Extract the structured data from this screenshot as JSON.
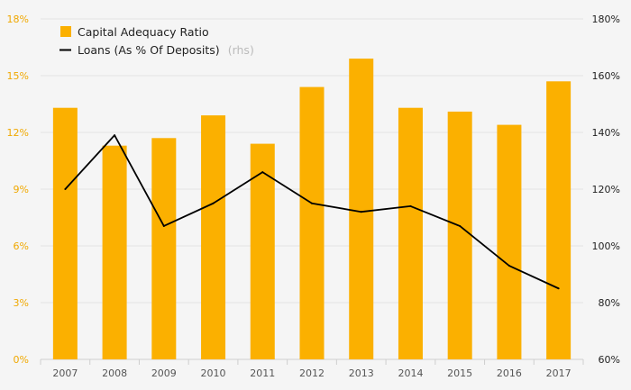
{
  "chart_data": {
    "type": "bar",
    "categories": [
      "2007",
      "2008",
      "2009",
      "2010",
      "2011",
      "2012",
      "2013",
      "2014",
      "2015",
      "2016",
      "2017"
    ],
    "series": [
      {
        "name": "Capital Adequacy Ratio",
        "type": "bar",
        "axis": "left",
        "color": "#fbb000",
        "values": [
          13.3,
          11.3,
          11.7,
          12.9,
          11.4,
          14.4,
          15.9,
          13.3,
          13.1,
          12.4,
          14.7
        ]
      },
      {
        "name": "Loans (As % Of Deposits)",
        "name_suffix": "(rhs)",
        "type": "line",
        "axis": "right",
        "color": "#000000",
        "values": [
          120,
          139,
          107,
          115,
          126,
          115,
          112,
          114,
          107,
          93,
          85
        ]
      }
    ],
    "y_left": {
      "min": 0,
      "max": 18,
      "ticks": [
        "0%",
        "3%",
        "6%",
        "9%",
        "12%",
        "15%",
        "18%"
      ],
      "color": "#f0a800"
    },
    "y_right": {
      "min": 60,
      "max": 180,
      "ticks": [
        "60%",
        "80%",
        "100%",
        "120%",
        "140%",
        "160%",
        "180%"
      ],
      "color": "#222222"
    },
    "grid": true,
    "legend_position": "top-left",
    "title": "",
    "xlabel": "",
    "ylabel": ""
  }
}
